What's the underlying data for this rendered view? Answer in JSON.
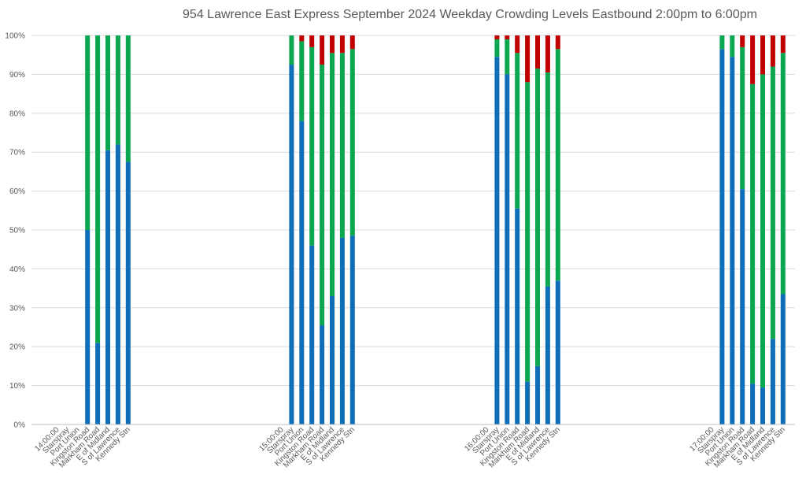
{
  "chart_data": {
    "type": "bar",
    "stacked": true,
    "percent_stacked": true,
    "title": "954 Lawrence East Express September 2024  Weekday Crowding Levels Eastbound 2:00pm to 6:00pm",
    "xlabel": "",
    "ylabel": "",
    "ylim": [
      0,
      100
    ],
    "yticks": [
      "0%",
      "10%",
      "20%",
      "30%",
      "40%",
      "50%",
      "60%",
      "70%",
      "80%",
      "90%",
      "100%"
    ],
    "grid": true,
    "legend": "none",
    "colors": [
      "#0e6eb8",
      "#0aa650",
      "#c00000"
    ],
    "categories": [
      "14:00:00",
      "Starspray",
      "Port Union",
      "Kingston Road",
      "Markham Road",
      "E of Midland",
      "S of Lawrence",
      "Kennedy Stn",
      "15:00:00",
      "Starspray",
      "Port Union",
      "Kingston Road",
      "Markham Road",
      "E of Midland",
      "S of Lawrence",
      "Kennedy Stn",
      "16:00:00",
      "Starspray",
      "Port Union",
      "Kingston Road",
      "Markham Road",
      "E of Midland",
      "S of Lawrence",
      "Kennedy Stn",
      "17:00:00",
      "Starspray",
      "Port Union",
      "Kingston Road",
      "Markham Road",
      "E of Midland",
      "S of Lawrence",
      "Kennedy Stn"
    ],
    "series": [
      {
        "values": [
          null,
          null,
          null,
          50,
          21,
          70.5,
          72,
          67.5,
          null,
          92.5,
          78,
          46,
          25.5,
          33,
          48,
          48.5,
          null,
          94.5,
          90,
          55.5,
          11,
          15,
          35.5,
          37,
          null,
          96.5,
          94.5,
          60.5,
          10.5,
          9.5,
          22,
          33.5
        ]
      },
      {
        "values": [
          null,
          null,
          null,
          50,
          79,
          29.5,
          28,
          32.5,
          null,
          7.5,
          20.5,
          51,
          67,
          62.5,
          47.5,
          48,
          null,
          4.5,
          9,
          40,
          77,
          76.5,
          55,
          59.5,
          null,
          3.5,
          5.5,
          36.5,
          77,
          80.5,
          70,
          62
        ]
      },
      {
        "values": [
          null,
          null,
          null,
          0,
          0,
          0,
          0,
          0,
          null,
          0,
          1.5,
          3,
          7.5,
          4.5,
          4.5,
          3.5,
          null,
          1,
          1,
          4.5,
          12,
          8.5,
          9.5,
          3.5,
          null,
          0,
          0,
          3,
          12.5,
          10,
          8,
          4.5
        ]
      }
    ]
  }
}
